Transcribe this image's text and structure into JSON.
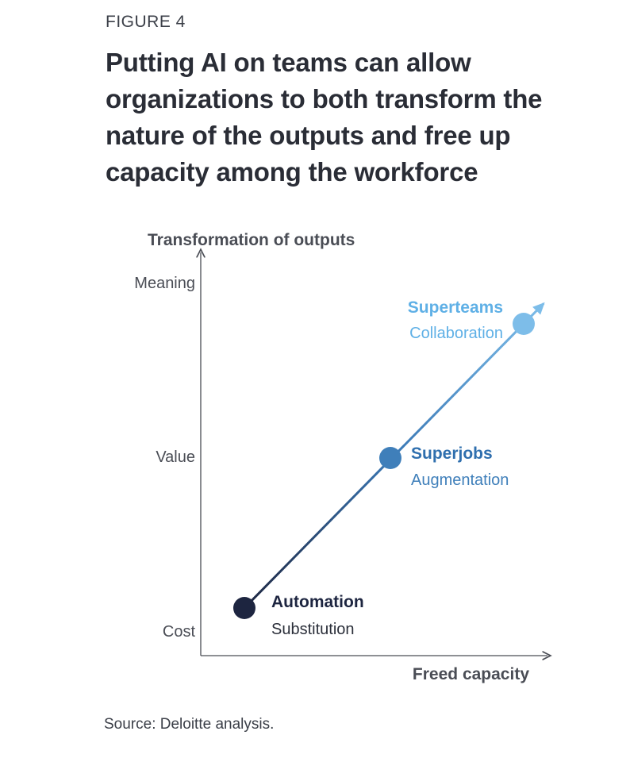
{
  "figure_label": "FIGURE 4",
  "title": "Putting AI on teams can allow organizations to both transform the nature of the outputs and free up capacity among the workforce",
  "source": "Source: Deloitte analysis.",
  "chart_data": {
    "type": "line",
    "ylabel": "Transformation of outputs",
    "xlabel": "Freed capacity",
    "y_ticks": [
      "Cost",
      "Value",
      "Meaning"
    ],
    "points": [
      {
        "name": "Automation",
        "subtitle": "Substitution",
        "x": 1,
        "y": "Cost",
        "color": "#1d2540",
        "name_color": "#1d2540",
        "sub_color": "#2b2f3a"
      },
      {
        "name": "Superjobs",
        "subtitle": "Augmentation",
        "x": 2,
        "y": "Value",
        "color": "#3f7fba",
        "name_color": "#2f6fae",
        "sub_color": "#3f7fba"
      },
      {
        "name": "Superteams",
        "subtitle": "Collaboration",
        "x": 3,
        "y": "Meaning",
        "color": "#7dbde9",
        "name_color": "#5fb0e6",
        "sub_color": "#5fb0e6"
      }
    ],
    "line_gradient": [
      "#1d2540",
      "#3a78b5",
      "#7dbde9"
    ],
    "grid": false,
    "legend": "none"
  }
}
